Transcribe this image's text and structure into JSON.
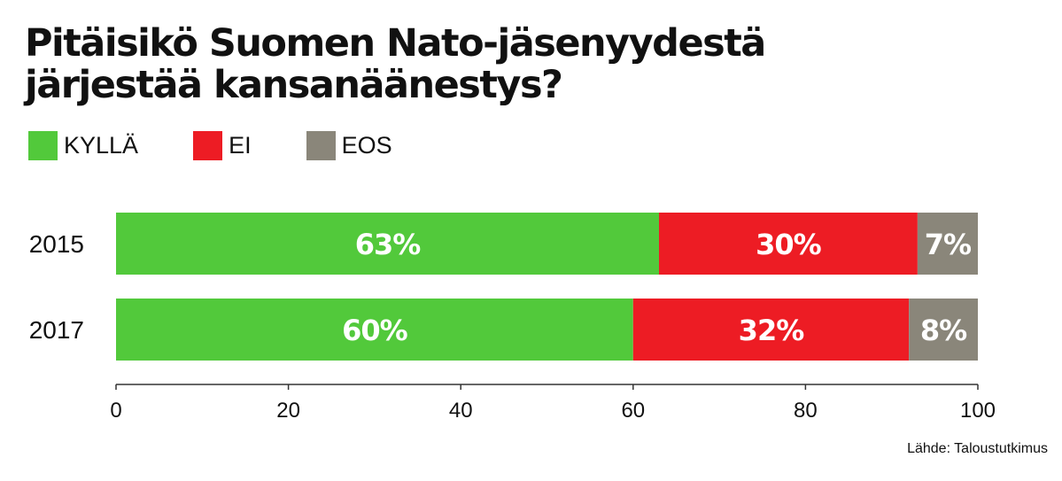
{
  "chart_data": {
    "type": "bar",
    "orientation": "horizontal",
    "stacked": true,
    "title": "Pitäisikö Suomen Nato-jäsenyydestä järjestää kansanäänestys?",
    "categories": [
      "2015",
      "2017"
    ],
    "series": [
      {
        "name": "KYLLÄ",
        "color": "#52c93b",
        "values": [
          63,
          60
        ]
      },
      {
        "name": "EI",
        "color": "#ed1c24",
        "values": [
          30,
          32
        ]
      },
      {
        "name": "EOS",
        "color": "#8a867a",
        "values": [
          7,
          8
        ]
      }
    ],
    "value_suffix": "%",
    "xlim": [
      0,
      100
    ],
    "xticks": [
      0,
      20,
      40,
      60,
      80,
      100
    ],
    "legend_position": "top-left",
    "grid": false
  },
  "source": "Lähde: Taloustutkimus"
}
